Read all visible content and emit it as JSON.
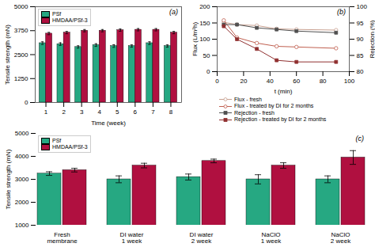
{
  "chart_data": [
    {
      "type": "bar",
      "title": "(a)",
      "xlabel": "Time (week)",
      "ylabel": "Tensile strength (mN)",
      "x": [
        1,
        2,
        3,
        4,
        5,
        6,
        7,
        8
      ],
      "xlim": [
        0.4,
        8.6
      ],
      "xticks": [
        1,
        2,
        3,
        4,
        5,
        6,
        7,
        8
      ],
      "ylim": [
        0,
        5000
      ],
      "yticks": [
        0,
        1250,
        2500,
        3750,
        5000
      ],
      "legend": "upper left",
      "series": [
        {
          "name": "PSf",
          "color": "#26A882",
          "values": [
            3100,
            3050,
            2900,
            3000,
            2950,
            2950,
            3100,
            2950
          ],
          "errors": [
            70,
            70,
            60,
            70,
            70,
            60,
            70,
            60
          ]
        },
        {
          "name": "HMDAA/PSf-3",
          "color": "#B01040",
          "values": [
            3600,
            3650,
            3750,
            3750,
            3780,
            3800,
            3800,
            3650
          ],
          "errors": [
            60,
            60,
            60,
            60,
            60,
            60,
            60,
            60
          ]
        }
      ]
    },
    {
      "type": "line",
      "title": "(b)",
      "xlabel": "t (min)",
      "ylabel": "Flux (L/m²h)",
      "y2label": "Rejection (%)",
      "x": [
        5,
        15,
        30,
        45,
        60,
        90
      ],
      "xlim": [
        0,
        100
      ],
      "xticks": [
        0,
        20,
        40,
        60,
        80,
        100
      ],
      "ylim": [
        0,
        200
      ],
      "yticks": [
        0,
        50,
        100,
        150,
        200
      ],
      "y2lim": [
        80,
        100
      ],
      "y2ticks": [
        80,
        85,
        90,
        95,
        100
      ],
      "legend": "bottom",
      "series": [
        {
          "name": "Flux - fresh",
          "color": "#c8a090",
          "marker": "circle",
          "values": [
            152,
            145,
            142,
            132,
            130,
            128
          ]
        },
        {
          "name": "Flux - treated by DI for 2 months",
          "color": "#c06050",
          "marker": "circle",
          "values": [
            158,
            105,
            88,
            78,
            76,
            72
          ]
        },
        {
          "name": "Rejection - fresh",
          "color": "#505050",
          "marker": "square",
          "axis": "y2",
          "values": [
            94.5,
            94.5,
            93.5,
            93.0,
            92.5,
            92.0
          ]
        },
        {
          "name": "Rejection - treated by DI for 2 months",
          "color": "#903030",
          "marker": "square",
          "axis": "y2",
          "values": [
            94.0,
            90.0,
            87.0,
            83.5,
            83.0,
            83.0
          ]
        }
      ]
    },
    {
      "type": "bar",
      "title": "(c)",
      "ylabel": "Tensile strength (mN)",
      "categories": [
        "Fresh\nmembrane",
        "DI water\n1 week",
        "DI water\n2 week",
        "NaClO\n1 week",
        "NaClO\n2 week"
      ],
      "ylim": [
        1000,
        5000
      ],
      "yticks": [
        1000,
        2000,
        3000,
        4000,
        5000
      ],
      "legend": "upper left",
      "series": [
        {
          "name": "PSf",
          "color": "#26A882",
          "values": [
            3250,
            3000,
            3100,
            3000,
            3000
          ],
          "errors": [
            80,
            150,
            130,
            200,
            150
          ]
        },
        {
          "name": "HMDAA/PSf-3",
          "color": "#B01040",
          "values": [
            3400,
            3600,
            3800,
            3600,
            3950
          ],
          "errors": [
            80,
            100,
            80,
            120,
            300
          ]
        }
      ]
    }
  ]
}
